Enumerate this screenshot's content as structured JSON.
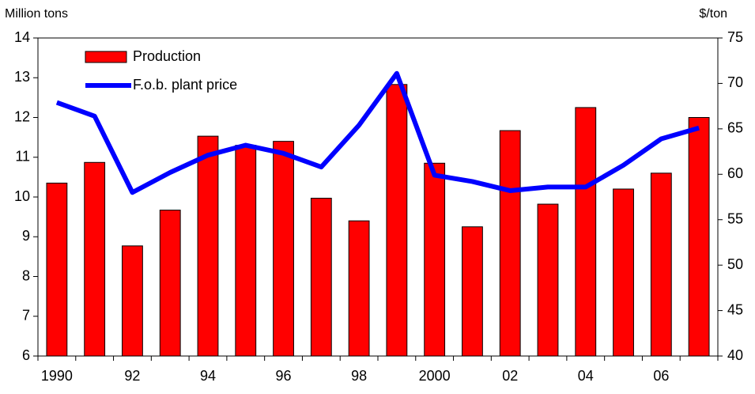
{
  "chart_data": {
    "type": "bar-line",
    "y_label": "Million tons",
    "y2_label": "$/ton",
    "categories": [
      "1990",
      null,
      "92",
      null,
      "94",
      null,
      "96",
      null,
      "98",
      null,
      "2000",
      null,
      "02",
      null,
      "04",
      null,
      "06",
      null
    ],
    "series": [
      {
        "name": "Production",
        "type": "bar",
        "color": "#ff0000",
        "values": [
          10.35,
          10.87,
          8.77,
          9.67,
          11.53,
          11.3,
          11.4,
          9.97,
          9.4,
          12.83,
          10.85,
          9.25,
          11.67,
          9.82,
          12.25,
          10.2,
          10.6,
          12.0
        ]
      },
      {
        "name": "F.o.b. plant price",
        "type": "line",
        "axis": "y2",
        "color": "#0000ff",
        "values": [
          67.9,
          66.4,
          58.0,
          60.2,
          62.1,
          63.2,
          62.3,
          60.8,
          65.4,
          71.1,
          59.9,
          59.2,
          58.2,
          58.6,
          58.6,
          61.0,
          63.9,
          65.1
        ]
      }
    ],
    "ylim": [
      6,
      14
    ],
    "yticks": [
      6,
      7,
      8,
      9,
      10,
      11,
      12,
      13,
      14
    ],
    "y2lim": [
      40,
      75
    ],
    "y2ticks": [
      40,
      45,
      50,
      55,
      60,
      65,
      70,
      75
    ],
    "legend": "top-left"
  }
}
